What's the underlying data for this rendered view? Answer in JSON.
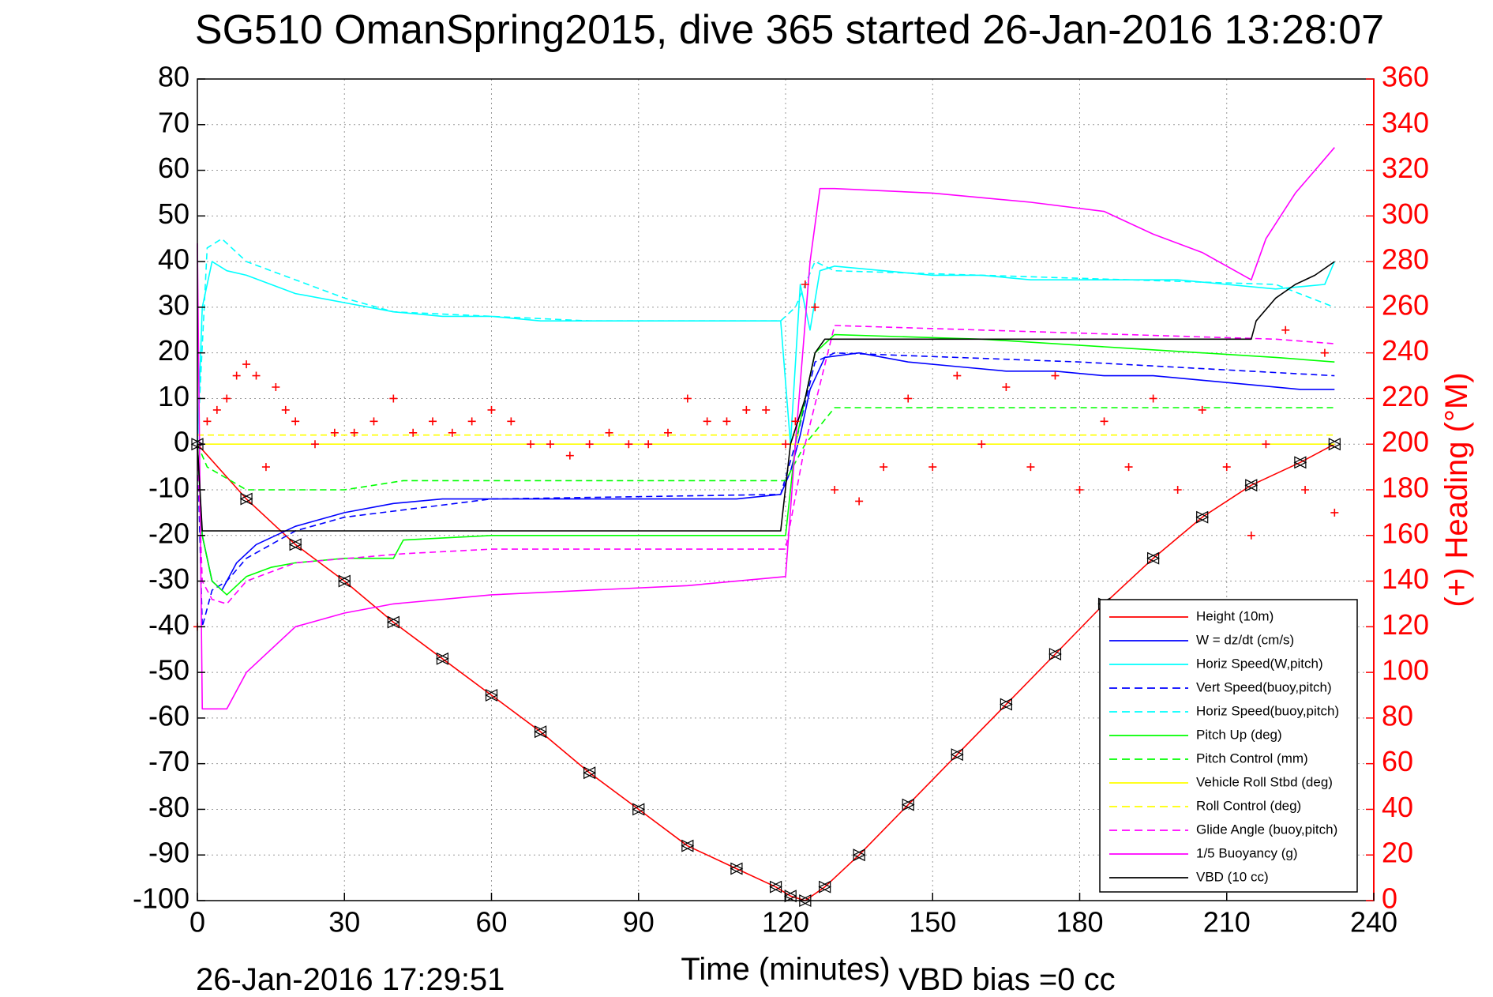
{
  "chart_data": {
    "type": "line",
    "title": "SG510 OmanSpring2015, dive 365 started 26-Jan-2016 13:28:07",
    "xlabel": "Time (minutes)",
    "y2label": "(+) Heading (°M)",
    "footer_left": "26-Jan-2016 17:29:51",
    "footer_right": "VBD bias =0 cc",
    "xlim": [
      0,
      240
    ],
    "ylim": [
      -100,
      80
    ],
    "y2lim": [
      0,
      360
    ],
    "xticks": [
      0,
      30,
      60,
      90,
      120,
      150,
      180,
      210,
      240
    ],
    "yticks": [
      -100,
      -90,
      -80,
      -70,
      -60,
      -50,
      -40,
      -30,
      -20,
      -10,
      0,
      10,
      20,
      30,
      40,
      50,
      60,
      70,
      80
    ],
    "y2ticks": [
      0,
      20,
      40,
      60,
      80,
      100,
      120,
      140,
      160,
      180,
      200,
      220,
      240,
      260,
      280,
      300,
      320,
      340,
      360
    ],
    "grid": true,
    "legend_position": "bottom-right",
    "colors": {
      "red": "#ff0000",
      "blue": "#0000ff",
      "cyan": "#00ffff",
      "green": "#00ff00",
      "yellow": "#ffff00",
      "magenta": "#ff00ff",
      "black": "#000000"
    },
    "series": [
      {
        "name": "Height (10m)",
        "color": "red",
        "dash": "solid",
        "x": [
          0,
          10,
          20,
          30,
          40,
          50,
          60,
          70,
          80,
          90,
          100,
          110,
          118,
          121,
          124,
          128,
          135,
          145,
          155,
          165,
          175,
          185,
          195,
          205,
          215,
          225,
          232
        ],
        "y": [
          0,
          -12,
          -22,
          -30,
          -39,
          -47,
          -55,
          -63,
          -72,
          -80,
          -88,
          -93,
          -97,
          -99,
          -100,
          -97,
          -90,
          -79,
          -68,
          -57,
          -46,
          -35,
          -25,
          -16,
          -9,
          -4,
          0
        ]
      },
      {
        "name": "W = dz/dt (cm/s)",
        "color": "blue",
        "dash": "solid",
        "x": [
          0,
          1,
          3,
          5,
          8,
          12,
          20,
          30,
          40,
          50,
          60,
          70,
          80,
          90,
          100,
          110,
          119,
          121,
          123,
          125,
          128,
          135,
          145,
          155,
          165,
          175,
          185,
          195,
          205,
          215,
          225,
          232
        ],
        "y": [
          0,
          -20,
          -30,
          -32,
          -26,
          -22,
          -18,
          -15,
          -13,
          -12,
          -12,
          -12,
          -12,
          -12,
          -12,
          -12,
          -11,
          -6,
          2,
          12,
          19,
          20,
          18,
          17,
          16,
          16,
          15,
          15,
          14,
          13,
          12,
          12
        ]
      },
      {
        "name": "Horiz Speed(W,pitch)",
        "color": "cyan",
        "dash": "solid",
        "x": [
          0,
          1,
          3,
          6,
          10,
          20,
          30,
          40,
          50,
          60,
          70,
          80,
          90,
          100,
          110,
          119,
          121,
          123,
          125,
          127,
          130,
          140,
          150,
          160,
          170,
          180,
          190,
          200,
          210,
          220,
          230,
          232
        ],
        "y": [
          0,
          30,
          40,
          38,
          37,
          33,
          31,
          29,
          28,
          28,
          27,
          27,
          27,
          27,
          27,
          27,
          0,
          35,
          25,
          38,
          39,
          38,
          37,
          37,
          36,
          36,
          36,
          36,
          35,
          34,
          35,
          40
        ]
      },
      {
        "name": "Vert Speed(buoy,pitch)",
        "color": "blue",
        "dash": "dashed",
        "x": [
          0,
          1,
          3,
          6,
          10,
          20,
          30,
          60,
          119,
          122,
          126,
          130,
          180,
          232
        ],
        "y": [
          0,
          -40,
          -32,
          -30,
          -25,
          -19,
          -16,
          -12,
          -11,
          0,
          18,
          20,
          18,
          15
        ]
      },
      {
        "name": "Horiz Speed(buoy,pitch)",
        "color": "cyan",
        "dash": "dashed",
        "x": [
          0,
          2,
          5,
          10,
          20,
          30,
          40,
          60,
          80,
          100,
          119,
          122,
          126,
          130,
          160,
          190,
          220,
          232
        ],
        "y": [
          0,
          43,
          45,
          40,
          36,
          32,
          29,
          28,
          27,
          27,
          27,
          30,
          40,
          38,
          37,
          36,
          35,
          30
        ]
      },
      {
        "name": "Pitch Up (deg)",
        "color": "green",
        "dash": "solid",
        "x": [
          0,
          1,
          3,
          6,
          10,
          15,
          20,
          30,
          40,
          42,
          60,
          80,
          100,
          120,
          122,
          126,
          130,
          160,
          190,
          220,
          232
        ],
        "y": [
          0,
          -20,
          -30,
          -33,
          -29,
          -27,
          -26,
          -25,
          -25,
          -21,
          -20,
          -20,
          -20,
          -20,
          0,
          20,
          24,
          23,
          21,
          19,
          18
        ]
      },
      {
        "name": "Pitch Control (mm)",
        "color": "green",
        "dash": "dashed",
        "x": [
          0,
          2,
          10,
          30,
          42,
          60,
          90,
          120,
          124,
          130,
          160,
          190,
          220,
          232
        ],
        "y": [
          0,
          -5,
          -10,
          -10,
          -8,
          -8,
          -8,
          -8,
          0,
          8,
          8,
          8,
          8,
          8
        ]
      },
      {
        "name": "Vehicle Roll Stbd (deg)",
        "color": "yellow",
        "dash": "solid",
        "x": [
          0,
          30,
          60,
          90,
          120,
          122,
          150,
          180,
          210,
          232
        ],
        "y": [
          0,
          0,
          0,
          0,
          0,
          0,
          0,
          0,
          0,
          0
        ]
      },
      {
        "name": "Roll Control (deg)",
        "color": "yellow",
        "dash": "dashed",
        "x": [
          0,
          60,
          120,
          180,
          232
        ],
        "y": [
          2,
          2,
          2,
          2,
          2
        ]
      },
      {
        "name": "Glide Angle (buoy,pitch)",
        "color": "magenta",
        "dash": "dashed",
        "x": [
          0,
          1,
          3,
          6,
          10,
          20,
          42,
          60,
          90,
          120,
          124,
          130,
          160,
          190,
          220,
          232
        ],
        "y": [
          0,
          -30,
          -34,
          -35,
          -30,
          -26,
          -24,
          -23,
          -23,
          -23,
          0,
          26,
          25,
          24,
          23,
          22
        ]
      },
      {
        "name": "1/5 Buoyancy (g)",
        "color": "magenta",
        "dash": "solid",
        "x": [
          0,
          1,
          2,
          6,
          10,
          15,
          20,
          30,
          40,
          60,
          80,
          100,
          120,
          122,
          125,
          127,
          130,
          150,
          170,
          185,
          195,
          205,
          215,
          218,
          224,
          228,
          232
        ],
        "y": [
          44,
          -58,
          -58,
          -58,
          -50,
          -45,
          -40,
          -37,
          -35,
          -33,
          -32,
          -31,
          -29,
          0,
          40,
          56,
          56,
          55,
          53,
          51,
          46,
          42,
          36,
          45,
          55,
          60,
          65
        ]
      },
      {
        "name": "VBD (10 cc)",
        "color": "black",
        "dash": "solid",
        "x": [
          0,
          1,
          2,
          60,
          119,
          121,
          124,
          126,
          128,
          160,
          200,
          215,
          216,
          220,
          224,
          228,
          232
        ],
        "y": [
          0,
          -19,
          -19,
          -19,
          -19,
          0,
          10,
          20,
          23,
          23,
          23,
          23,
          27,
          32,
          35,
          37,
          40
        ]
      }
    ],
    "heading_series": {
      "name": "Heading",
      "axis": "right",
      "marker": "+",
      "color": "red",
      "x": [
        0,
        2,
        4,
        6,
        8,
        10,
        12,
        14,
        16,
        18,
        20,
        24,
        28,
        32,
        36,
        40,
        44,
        48,
        52,
        56,
        60,
        64,
        68,
        72,
        76,
        80,
        84,
        88,
        92,
        96,
        100,
        104,
        108,
        112,
        116,
        120,
        122,
        124,
        126,
        130,
        135,
        140,
        145,
        150,
        155,
        160,
        165,
        170,
        175,
        180,
        185,
        190,
        195,
        200,
        205,
        210,
        215,
        218,
        222,
        226,
        230,
        232
      ],
      "y": [
        120,
        210,
        215,
        220,
        230,
        235,
        230,
        190,
        225,
        215,
        210,
        200,
        205,
        205,
        210,
        220,
        205,
        210,
        205,
        210,
        215,
        210,
        200,
        200,
        195,
        200,
        205,
        200,
        200,
        205,
        220,
        210,
        210,
        215,
        215,
        200,
        210,
        270,
        260,
        180,
        175,
        190,
        220,
        190,
        230,
        200,
        225,
        190,
        230,
        180,
        210,
        190,
        220,
        180,
        215,
        190,
        160,
        200,
        250,
        180,
        240,
        170
      ]
    },
    "legend_entries": [
      {
        "label": "Height (10m)",
        "color": "red",
        "dash": "solid"
      },
      {
        "label": "W = dz/dt (cm/s)",
        "color": "blue",
        "dash": "solid"
      },
      {
        "label": "Horiz Speed(W,pitch)",
        "color": "cyan",
        "dash": "solid"
      },
      {
        "label": "Vert Speed(buoy,pitch)",
        "color": "blue",
        "dash": "dashed"
      },
      {
        "label": "Horiz Speed(buoy,pitch)",
        "color": "cyan",
        "dash": "dashed"
      },
      {
        "label": "Pitch Up (deg)",
        "color": "green",
        "dash": "solid"
      },
      {
        "label": "Pitch Control (mm)",
        "color": "green",
        "dash": "dashed"
      },
      {
        "label": "Vehicle Roll Stbd (deg)",
        "color": "yellow",
        "dash": "solid"
      },
      {
        "label": "Roll Control (deg)",
        "color": "yellow",
        "dash": "dashed"
      },
      {
        "label": "Glide Angle (buoy,pitch)",
        "color": "magenta",
        "dash": "dashed"
      },
      {
        "label": "1/5 Buoyancy (g)",
        "color": "magenta",
        "dash": "solid"
      },
      {
        "label": "VBD (10 cc)",
        "color": "black",
        "dash": "solid"
      }
    ]
  }
}
